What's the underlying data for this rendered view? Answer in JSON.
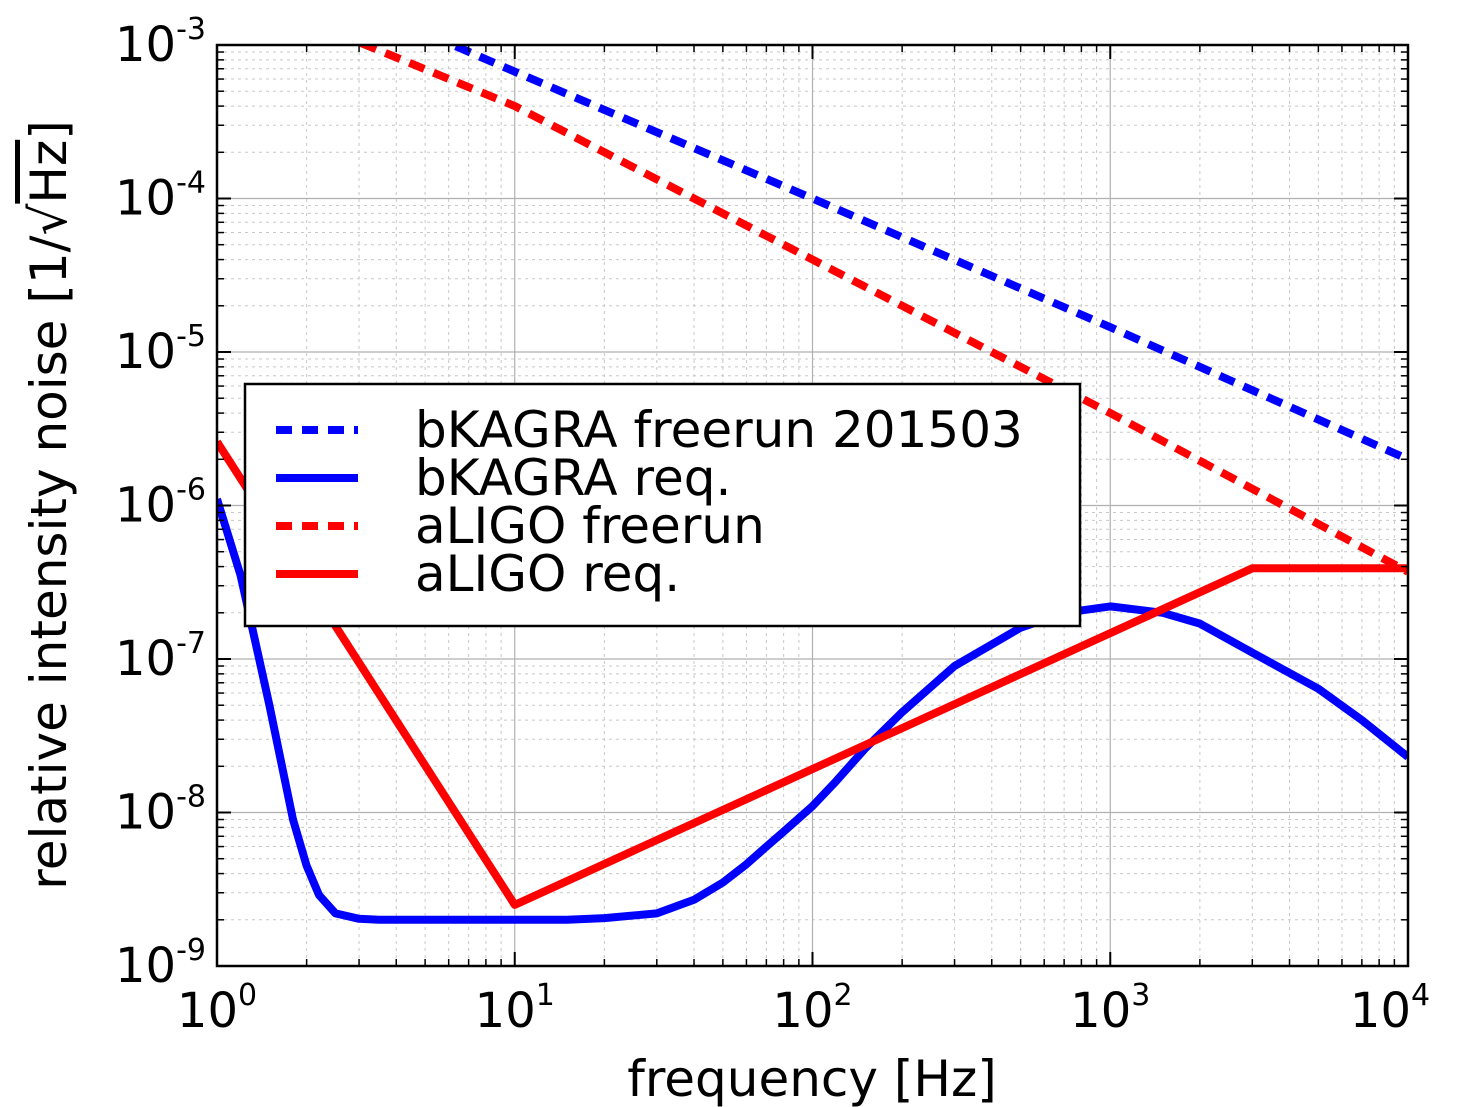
{
  "chart_data": {
    "type": "line",
    "xlabel": "frequency [Hz]",
    "ylabel": "relative intensity noise [1/√Hz]",
    "ylabel_prefix": "relative intensity noise [1/",
    "ylabel_radical": "√",
    "ylabel_radicand": "Hz",
    "ylabel_suffix": "]",
    "x_scale": "log",
    "y_scale": "log",
    "xlim": [
      1,
      10000
    ],
    "ylim": [
      1e-09,
      0.001
    ],
    "grid": true,
    "legend_position": "center-left",
    "x_ticks": [
      {
        "base": "10",
        "exp": "0",
        "value": 1
      },
      {
        "base": "10",
        "exp": "1",
        "value": 10
      },
      {
        "base": "10",
        "exp": "2",
        "value": 100
      },
      {
        "base": "10",
        "exp": "3",
        "value": 1000
      },
      {
        "base": "10",
        "exp": "4",
        "value": 10000
      }
    ],
    "y_ticks": [
      {
        "base": "10",
        "exp": "-9",
        "value": 1e-09
      },
      {
        "base": "10",
        "exp": "-8",
        "value": 1e-08
      },
      {
        "base": "10",
        "exp": "-7",
        "value": 1e-07
      },
      {
        "base": "10",
        "exp": "-6",
        "value": 1e-06
      },
      {
        "base": "10",
        "exp": "-5",
        "value": 1e-05
      },
      {
        "base": "10",
        "exp": "-4",
        "value": 0.0001
      },
      {
        "base": "10",
        "exp": "-3",
        "value": 0.001
      }
    ],
    "series": [
      {
        "name": "bKAGRA freerun 201503",
        "color": "#0000ff",
        "style": "dashed",
        "x": [
          1,
          10,
          100,
          1000,
          10000
        ],
        "y": [
          0.0046,
          0.00067,
          0.0001,
          1.45e-05,
          2e-06
        ]
      },
      {
        "name": "bKAGRA req.",
        "color": "#0000ff",
        "style": "solid",
        "x": [
          1,
          1.2,
          1.5,
          1.8,
          2,
          2.2,
          2.5,
          3,
          3.5,
          4,
          5,
          7,
          10,
          15,
          20,
          30,
          40,
          50,
          60,
          70,
          80,
          100,
          120,
          150,
          200,
          300,
          500,
          700,
          1000,
          1500,
          2000,
          3000,
          5000,
          7000,
          10000
        ],
        "y": [
          1.1e-06,
          3.5e-07,
          5e-08,
          9e-09,
          4.5e-09,
          2.9e-09,
          2.2e-09,
          2.03e-09,
          2e-09,
          2e-09,
          2e-09,
          2e-09,
          2e-09,
          2e-09,
          2.05e-09,
          2.2e-09,
          2.7e-09,
          3.5e-09,
          4.6e-09,
          6e-09,
          7.5e-09,
          1.1e-08,
          1.6e-08,
          2.6e-08,
          4.5e-08,
          9e-08,
          1.6e-07,
          2e-07,
          2.2e-07,
          2e-07,
          1.7e-07,
          1.1e-07,
          6.4e-08,
          4e-08,
          2.3e-08
        ]
      },
      {
        "name": "aLIGO freerun",
        "color": "#ff0000",
        "style": "dashed",
        "x": [
          1,
          10,
          100,
          1000,
          10000
        ],
        "y": [
          0.0025,
          0.0004,
          4e-05,
          4e-06,
          3.7e-07
        ]
      },
      {
        "name": "aLIGO req.",
        "color": "#ff0000",
        "style": "solid",
        "x": [
          1,
          10,
          3000,
          10000
        ],
        "y": [
          2.6e-06,
          2.5e-09,
          3.9e-07,
          3.9e-07
        ]
      }
    ]
  }
}
